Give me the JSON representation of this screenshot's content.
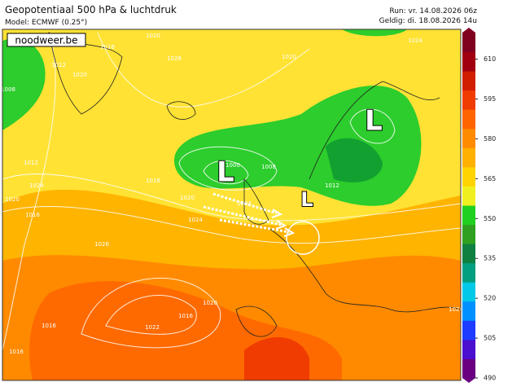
{
  "header": {
    "title": "Geopotentiaal 500 hPa & luchtdruk",
    "model": "Model: ECMWF (0.25°)",
    "run": "Run: vr. 14.08.2026 06z",
    "valid": "Geldig: di. 18.08.2026 14u"
  },
  "map": {
    "watermark": "noodweer.be",
    "low_symbols": [
      "L",
      "L",
      "L"
    ],
    "isobar_labels": [
      "1008",
      "1012",
      "1020",
      "1016",
      "1020",
      "1028",
      "1012",
      "1016",
      "1024",
      "1020",
      "1016",
      "1000",
      "1004",
      "1008",
      "1012",
      "1020",
      "1024",
      "1026",
      "1022",
      "1016",
      "1020",
      "1020",
      "1016",
      "1024",
      "1016",
      "1020"
    ]
  },
  "colorbar": {
    "range": [
      490,
      620
    ],
    "ticks": [
      610,
      595,
      580,
      565,
      550,
      535,
      520,
      505,
      490
    ],
    "colors": [
      "#6a0080",
      "#4b0fd0",
      "#1e3cff",
      "#0090ff",
      "#00c8e6",
      "#00a080",
      "#108040",
      "#30a020",
      "#20d020",
      "#f0f020",
      "#ffd400",
      "#ffb000",
      "#ff8c00",
      "#ff6400",
      "#f03c00",
      "#d21e00",
      "#a00010",
      "#800020"
    ]
  }
}
